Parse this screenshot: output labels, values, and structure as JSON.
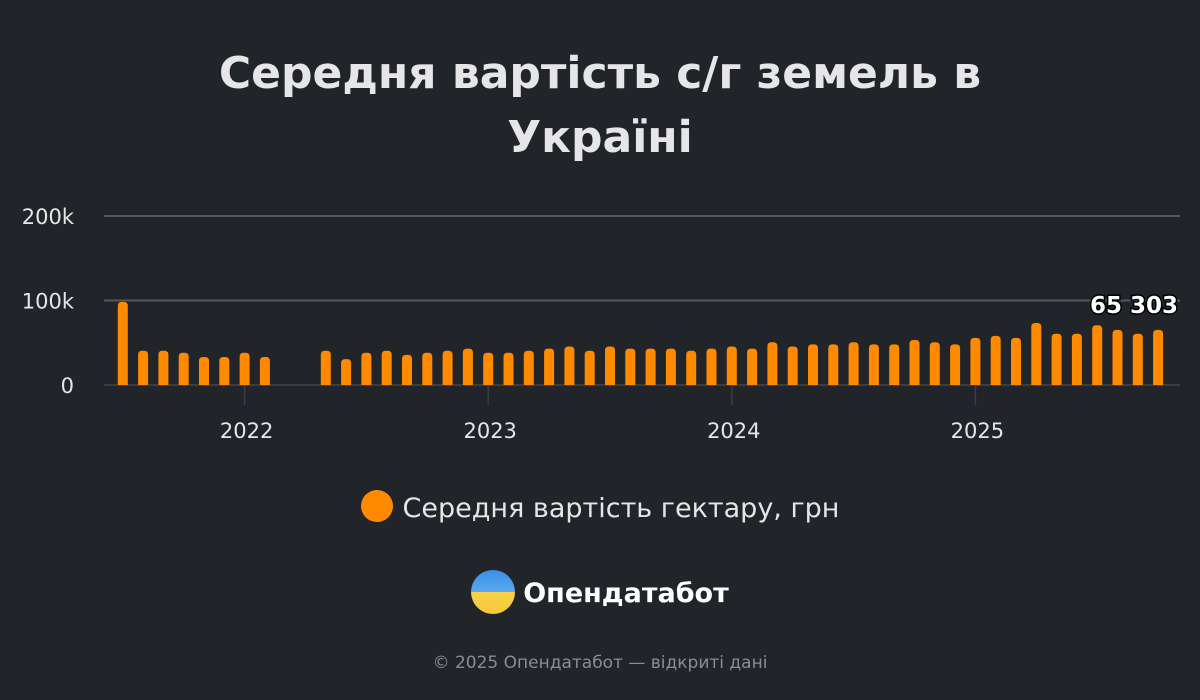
{
  "chart_data": {
    "type": "bar",
    "title": [
      "Середня вартість с/г земель в",
      "Україні"
    ],
    "series": [
      {
        "name": "Середня вартість гектару, грн",
        "color": "#ff8a00"
      }
    ],
    "x": [
      "2021-07",
      "2021-08",
      "2021-09",
      "2021-10",
      "2021-11",
      "2021-12",
      "2022-01",
      "2022-02",
      "2022-05",
      "2022-06",
      "2022-07",
      "2022-08",
      "2022-09",
      "2022-10",
      "2022-11",
      "2022-12",
      "2023-01",
      "2023-02",
      "2023-03",
      "2023-04",
      "2023-05",
      "2023-06",
      "2023-07",
      "2023-08",
      "2023-09",
      "2023-10",
      "2023-11",
      "2023-12",
      "2024-01",
      "2024-02",
      "2024-03",
      "2024-04",
      "2024-05",
      "2024-06",
      "2024-07",
      "2024-08",
      "2024-09",
      "2024-10",
      "2024-11",
      "2024-12",
      "2025-01",
      "2025-02",
      "2025-03",
      "2025-04",
      "2025-05",
      "2025-06",
      "2025-07",
      "2025-08",
      "2025-09",
      "2025-10"
    ],
    "values": [
      98400,
      40600,
      40600,
      38100,
      33100,
      33100,
      38100,
      33100,
      40600,
      30600,
      38100,
      40600,
      35600,
      38100,
      40600,
      43100,
      38100,
      38100,
      40600,
      43100,
      45600,
      40600,
      45600,
      43100,
      43100,
      43100,
      40600,
      43100,
      45600,
      43100,
      50600,
      45600,
      48100,
      48100,
      50600,
      48100,
      48100,
      53200,
      50600,
      48100,
      55700,
      58200,
      55700,
      73300,
      60700,
      60700,
      70700,
      65300,
      60700,
      65303
    ],
    "x_ticks": [
      "2022",
      "2023",
      "2024",
      "2025"
    ],
    "y_ticks": [
      "0",
      "100k",
      "200k"
    ],
    "ylim": [
      0,
      200000
    ],
    "grid": true,
    "legend_position": "bottom",
    "annotation": "65 303"
  },
  "branding": {
    "logo_text": "Опендатабот"
  },
  "footer": "© 2025 Опендатабот — відкриті дані"
}
